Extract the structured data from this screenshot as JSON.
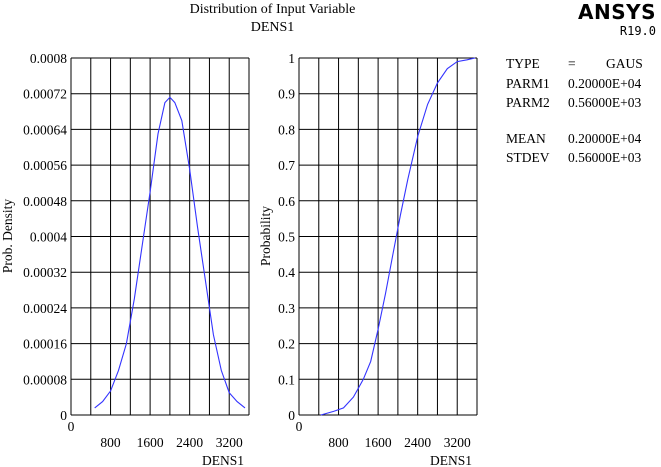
{
  "header": {
    "title": "Distribution of Input Variable",
    "subtitle": "DENS1",
    "logo": "ANSYS",
    "version": "R19.0"
  },
  "legend": {
    "type_label": "TYPE",
    "type_eq": "=",
    "type_value": "GAUS",
    "parm1_label": "PARM1",
    "parm1_value": "0.20000E+04",
    "parm2_label": "PARM2",
    "parm2_value": "0.56000E+03",
    "mean_label": "MEAN",
    "mean_value": "0.20000E+04",
    "stdev_label": "STDEV",
    "stdev_value": "0.56000E+03"
  },
  "colors": {
    "curve": "#3333ff",
    "grid": "#000000",
    "background": "#ffffff"
  },
  "chart_data": [
    {
      "type": "line",
      "xlabel": "DENS1",
      "ylabel": "Prob. Density",
      "xlim": [
        0,
        3600
      ],
      "ylim": [
        0,
        0.0008
      ],
      "grid": true,
      "x_ticks": [
        "0",
        "800",
        "1600",
        "2400",
        "3200"
      ],
      "y_ticks": [
        "0",
        "0.00008",
        "0.00016",
        "0.00024",
        "0.00032",
        "0.0004",
        "0.00048",
        "0.00056",
        "0.00064",
        "0.00072",
        "0.0008"
      ],
      "series": [
        {
          "x": [
            480,
            640,
            800,
            960,
            1120,
            1280,
            1440,
            1600,
            1760,
            1900,
            2000,
            2100,
            2240,
            2400,
            2560,
            2720,
            2880,
            3040,
            3200,
            3360,
            3520
          ],
          "y": [
            1.6e-05,
            3e-05,
            5.4e-05,
            0.0001,
            0.00016,
            0.00026,
            0.00038,
            0.0005,
            0.00063,
            0.0007,
            0.000712,
            0.0007,
            0.00066,
            0.00055,
            0.00042,
            0.0003,
            0.00018,
            0.0001,
            5e-05,
            3e-05,
            1.6e-05
          ]
        }
      ]
    },
    {
      "type": "line",
      "xlabel": "DENS1",
      "ylabel": "Probability",
      "xlim": [
        0,
        3600
      ],
      "ylim": [
        0,
        1
      ],
      "grid": true,
      "x_ticks": [
        "0",
        "800",
        "1600",
        "2400",
        "3200"
      ],
      "y_ticks": [
        "0",
        "0.1",
        "0.2",
        "0.3",
        "0.4",
        "0.5",
        "0.6",
        "0.7",
        "0.8",
        "0.9",
        "1"
      ],
      "series": [
        {
          "x": [
            440,
            700,
            900,
            1100,
            1300,
            1450,
            1600,
            1750,
            1900,
            2050,
            2200,
            2400,
            2600,
            2800,
            3000,
            3200,
            3400,
            3560
          ],
          "y": [
            0.0,
            0.01,
            0.02,
            0.05,
            0.1,
            0.15,
            0.24,
            0.34,
            0.45,
            0.56,
            0.66,
            0.78,
            0.87,
            0.93,
            0.97,
            0.99,
            0.995,
            1.0
          ]
        }
      ]
    }
  ]
}
